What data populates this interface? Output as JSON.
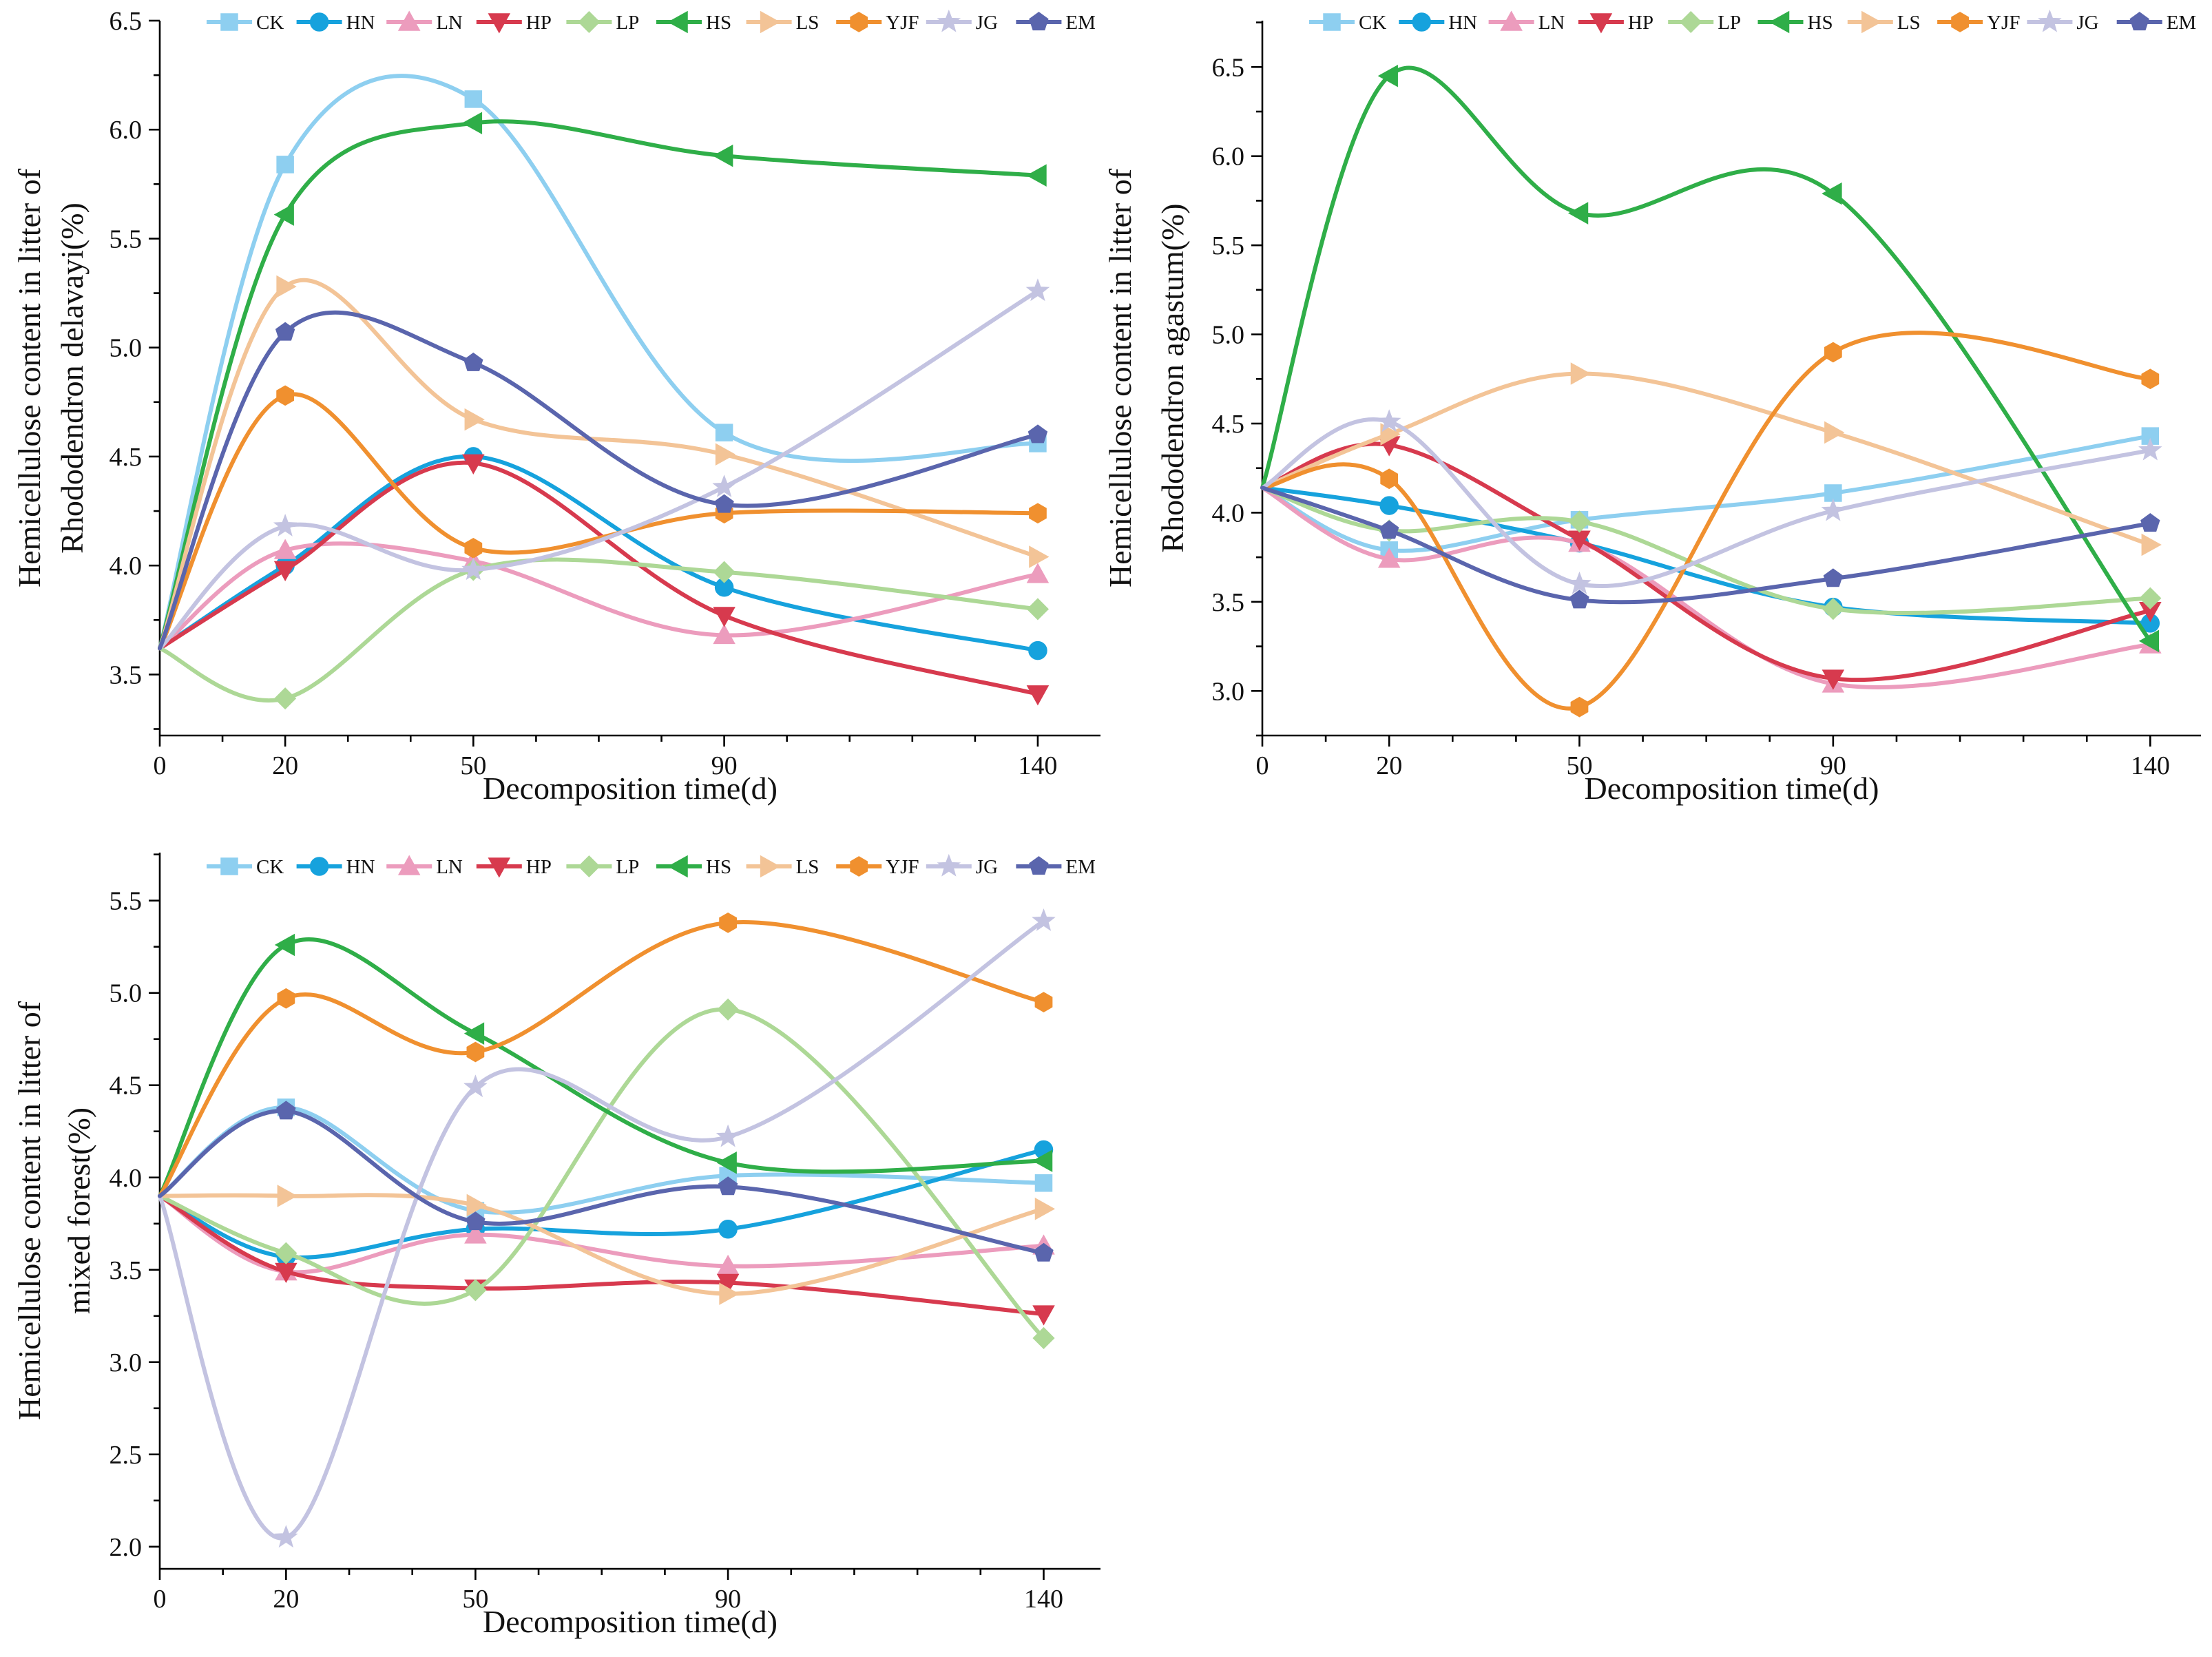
{
  "figure": {
    "xlabel": "Decomposition time(d)"
  },
  "series_styles": [
    {
      "name": "CK",
      "color": "#8ecff0",
      "marker": "square"
    },
    {
      "name": "HN",
      "color": "#16a2dd",
      "marker": "circle"
    },
    {
      "name": "LN",
      "color": "#ec9cbd",
      "marker": "triangle-up"
    },
    {
      "name": "HP",
      "color": "#d73a4e",
      "marker": "triangle-down"
    },
    {
      "name": "LP",
      "color": "#add896",
      "marker": "diamond"
    },
    {
      "name": "HS",
      "color": "#2fae48",
      "marker": "triangle-left"
    },
    {
      "name": "LS",
      "color": "#f3c497",
      "marker": "triangle-right"
    },
    {
      "name": "YJF",
      "color": "#f0902f",
      "marker": "hexagon"
    },
    {
      "name": "JG",
      "color": "#c3c3e1",
      "marker": "star"
    },
    {
      "name": "EM",
      "color": "#5a65ad",
      "marker": "pentagon"
    }
  ],
  "chart_data": [
    {
      "id": "delavayi",
      "type": "line",
      "title": "",
      "ylabel_line1": "Hemicellulose content in litter of",
      "ylabel_line2": "Rhododendron delavayi(%)",
      "xlabel": "Decomposition time(d)",
      "x": [
        0,
        20,
        50,
        90,
        140
      ],
      "xticks": [
        0,
        20,
        50,
        90,
        140
      ],
      "xlim": [
        0,
        150
      ],
      "ylim": [
        3.22,
        6.5
      ],
      "yticks": [
        3.5,
        4.0,
        4.5,
        5.0,
        5.5,
        6.0,
        6.5
      ],
      "ytick_labels": [
        "3.5",
        "4.0",
        "4.5",
        "5.0",
        "5.5",
        "6.0",
        "6.5"
      ],
      "legend": "top",
      "series": [
        {
          "name": "CK",
          "values": [
            3.62,
            5.84,
            6.14,
            4.61,
            4.56
          ]
        },
        {
          "name": "HN",
          "values": [
            3.62,
            4.0,
            4.5,
            3.9,
            3.61
          ]
        },
        {
          "name": "LN",
          "values": [
            3.62,
            4.07,
            4.02,
            3.68,
            3.96
          ]
        },
        {
          "name": "HP",
          "values": [
            3.62,
            3.98,
            4.47,
            3.77,
            3.41
          ]
        },
        {
          "name": "LP",
          "values": [
            3.62,
            3.39,
            3.98,
            3.97,
            3.8
          ]
        },
        {
          "name": "HS",
          "values": [
            3.62,
            5.61,
            6.03,
            5.88,
            5.79
          ]
        },
        {
          "name": "LS",
          "values": [
            3.62,
            5.28,
            4.67,
            4.51,
            4.04
          ]
        },
        {
          "name": "YJF",
          "values": [
            3.62,
            4.78,
            4.08,
            4.24,
            4.24
          ]
        },
        {
          "name": "JG",
          "values": [
            3.62,
            4.18,
            3.98,
            4.36,
            5.26
          ]
        },
        {
          "name": "EM",
          "values": [
            3.62,
            5.07,
            4.93,
            4.28,
            4.6
          ]
        }
      ]
    },
    {
      "id": "agastum",
      "type": "line",
      "title": "",
      "ylabel_line1": "Hemicellulose content in litter of",
      "ylabel_line2": "Rhododendron agastum(%)",
      "xlabel": "Decomposition time(d)",
      "x": [
        0,
        20,
        50,
        90,
        140
      ],
      "xticks": [
        0,
        20,
        50,
        90,
        140
      ],
      "xlim": [
        0,
        148
      ],
      "ylim": [
        2.75,
        6.76
      ],
      "yticks": [
        3.0,
        3.5,
        4.0,
        4.5,
        5.0,
        5.5,
        6.0,
        6.5
      ],
      "ytick_labels": [
        "3.0",
        "3.5",
        "4.0",
        "4.5",
        "5.0",
        "5.5",
        "6.0",
        "6.5"
      ],
      "legend": "top",
      "series": [
        {
          "name": "CK",
          "values": [
            4.14,
            3.79,
            3.96,
            4.11,
            4.43
          ]
        },
        {
          "name": "HN",
          "values": [
            4.14,
            4.04,
            3.83,
            3.47,
            3.38
          ]
        },
        {
          "name": "LN",
          "values": [
            4.14,
            3.74,
            3.83,
            3.04,
            3.26
          ]
        },
        {
          "name": "HP",
          "values": [
            4.14,
            4.38,
            3.85,
            3.07,
            3.45
          ]
        },
        {
          "name": "LP",
          "values": [
            4.14,
            3.9,
            3.95,
            3.46,
            3.52
          ]
        },
        {
          "name": "HS",
          "values": [
            4.14,
            6.45,
            5.68,
            5.79,
            3.28
          ]
        },
        {
          "name": "LS",
          "values": [
            4.14,
            4.44,
            4.78,
            4.45,
            3.82
          ]
        },
        {
          "name": "YJF",
          "values": [
            4.14,
            4.19,
            2.91,
            4.9,
            4.75
          ]
        },
        {
          "name": "JG",
          "values": [
            4.14,
            4.51,
            3.6,
            4.01,
            4.35
          ]
        },
        {
          "name": "EM",
          "values": [
            4.14,
            3.9,
            3.51,
            3.63,
            3.94
          ]
        }
      ]
    },
    {
      "id": "mixed",
      "type": "line",
      "title": "",
      "ylabel_line1": "Hemicellulose content in litter of",
      "ylabel_line2": "mixed forest(%)",
      "xlabel": "Decomposition time(d)",
      "x": [
        0,
        20,
        50,
        90,
        140
      ],
      "xticks": [
        0,
        20,
        50,
        90,
        140
      ],
      "xlim": [
        0,
        149
      ],
      "ylim": [
        1.88,
        5.76
      ],
      "yticks": [
        2.0,
        2.5,
        3.0,
        3.5,
        4.0,
        4.5,
        5.0,
        5.5
      ],
      "ytick_labels": [
        "2.0",
        "2.5",
        "3.0",
        "3.5",
        "4.0",
        "4.5",
        "5.0",
        "5.5"
      ],
      "legend": "top",
      "series": [
        {
          "name": "CK",
          "values": [
            3.9,
            4.38,
            3.82,
            4.01,
            3.97
          ]
        },
        {
          "name": "HN",
          "values": [
            3.9,
            3.57,
            3.72,
            3.72,
            4.15
          ]
        },
        {
          "name": "LN",
          "values": [
            3.9,
            3.49,
            3.69,
            3.52,
            3.63
          ]
        },
        {
          "name": "HP",
          "values": [
            3.9,
            3.49,
            3.4,
            3.43,
            3.26
          ]
        },
        {
          "name": "LP",
          "values": [
            3.9,
            3.59,
            3.39,
            4.91,
            3.13
          ]
        },
        {
          "name": "HS",
          "values": [
            3.9,
            5.26,
            4.78,
            4.08,
            4.09
          ]
        },
        {
          "name": "LS",
          "values": [
            3.9,
            3.9,
            3.85,
            3.37,
            3.83
          ]
        },
        {
          "name": "YJF",
          "values": [
            3.9,
            4.97,
            4.68,
            5.38,
            4.95
          ]
        },
        {
          "name": "JG",
          "values": [
            3.9,
            2.05,
            4.49,
            4.22,
            5.39
          ]
        },
        {
          "name": "EM",
          "values": [
            3.9,
            4.36,
            3.76,
            3.95,
            3.59
          ]
        }
      ]
    }
  ]
}
